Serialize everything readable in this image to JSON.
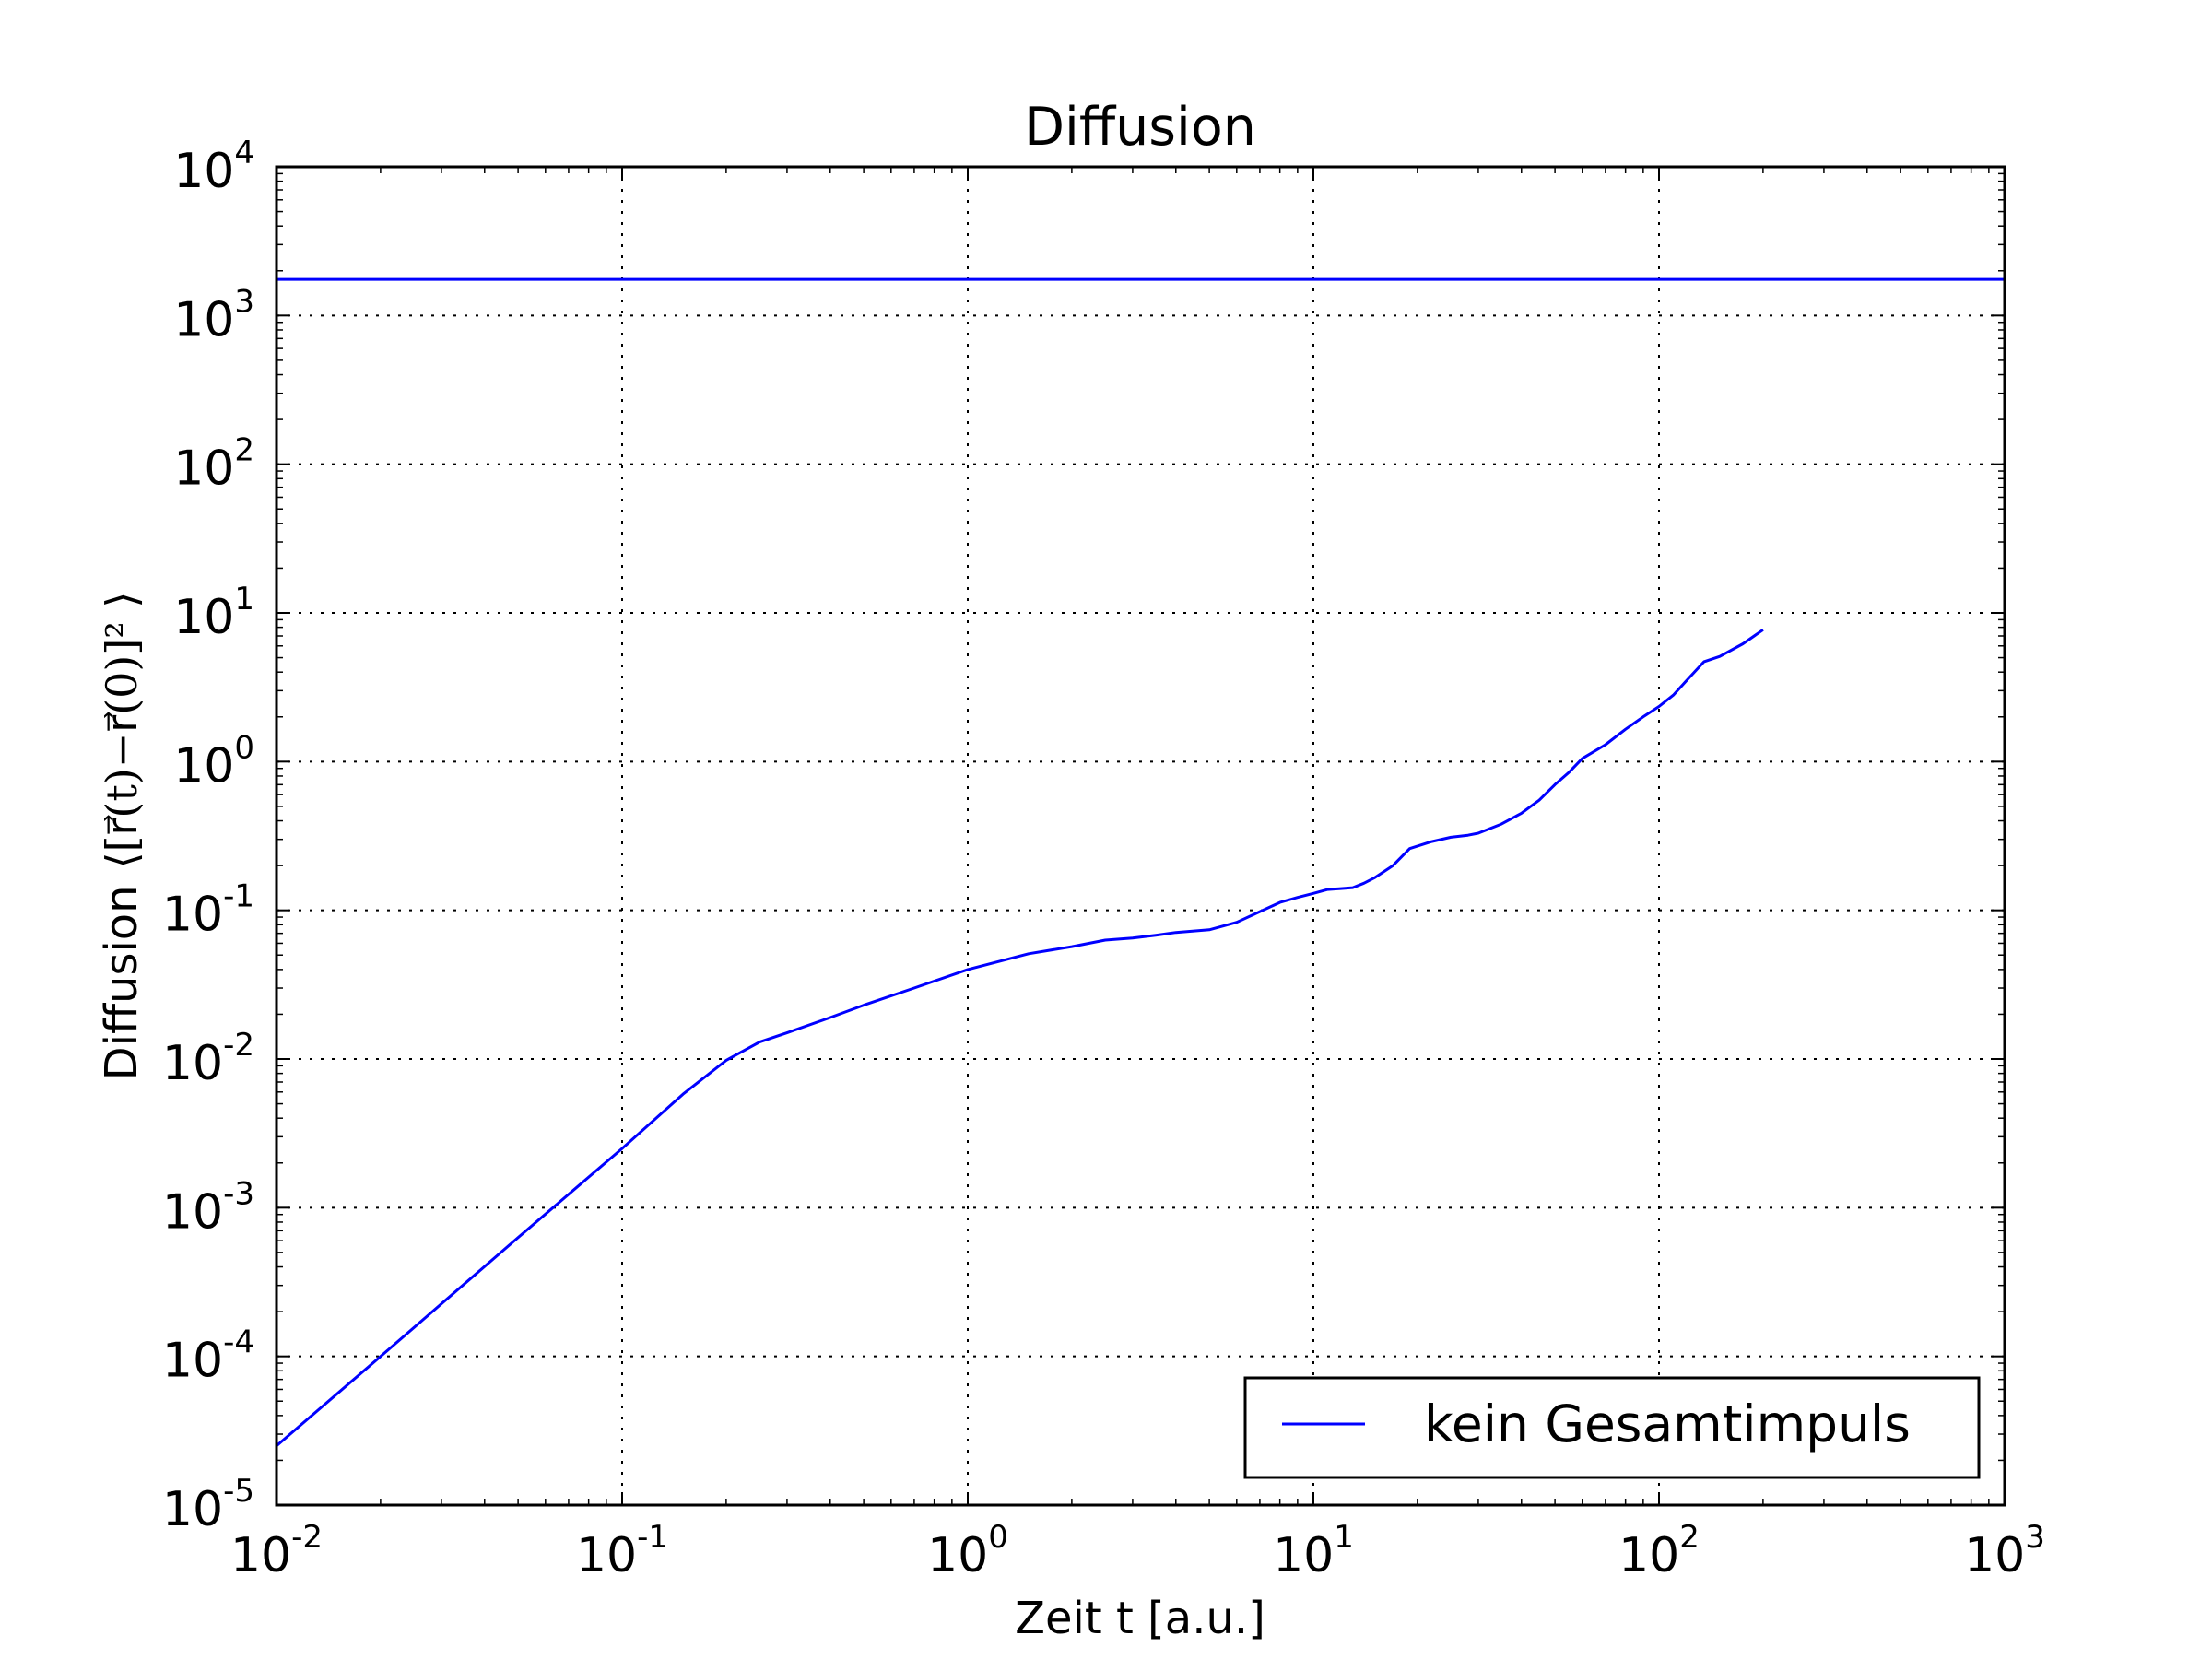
{
  "chart_data": {
    "type": "line",
    "title": "Diffusion",
    "xlabel": "Zeit t [a.u.]",
    "ylabel": {
      "text": "Diffusion",
      "math": "⟨[r⃗(t)−r⃗(0)]² ⟩"
    },
    "x_scale": "log",
    "y_scale": "log",
    "xlim": [
      0.01,
      1000
    ],
    "ylim": [
      1e-05,
      10000
    ],
    "x_ticks": [
      {
        "value": 0.01,
        "base": "10",
        "exp": "-2"
      },
      {
        "value": 0.1,
        "base": "10",
        "exp": "-1"
      },
      {
        "value": 1,
        "base": "10",
        "exp": "0"
      },
      {
        "value": 10,
        "base": "10",
        "exp": "1"
      },
      {
        "value": 100,
        "base": "10",
        "exp": "2"
      },
      {
        "value": 1000,
        "base": "10",
        "exp": "3"
      }
    ],
    "y_ticks": [
      {
        "value": 1e-05,
        "base": "10",
        "exp": "-5"
      },
      {
        "value": 0.0001,
        "base": "10",
        "exp": "-4"
      },
      {
        "value": 0.001,
        "base": "10",
        "exp": "-3"
      },
      {
        "value": 0.01,
        "base": "10",
        "exp": "-2"
      },
      {
        "value": 0.1,
        "base": "10",
        "exp": "-1"
      },
      {
        "value": 1,
        "base": "10",
        "exp": "0"
      },
      {
        "value": 10,
        "base": "10",
        "exp": "1"
      },
      {
        "value": 100,
        "base": "10",
        "exp": "2"
      },
      {
        "value": 1000,
        "base": "10",
        "exp": "3"
      },
      {
        "value": 10000,
        "base": "10",
        "exp": "4"
      }
    ],
    "grid": true,
    "legend_position": "lower right",
    "series": [
      {
        "name": "kein Gesamtimpuls",
        "color": "#0000ff",
        "x": [
          0.01,
          0.02,
          0.05,
          0.1,
          0.15,
          0.2,
          0.25,
          0.3,
          0.4,
          0.5,
          0.7,
          1.0,
          1.5,
          2.0,
          2.5,
          3.0,
          3.5,
          4.0,
          5.0,
          6.0,
          7.0,
          8.0,
          9.0,
          10.0,
          11.0,
          12.0,
          13.0,
          14.0,
          15.0,
          17.0,
          19.0,
          22.0,
          25.0,
          28.0,
          30.0,
          35.0,
          40.0,
          45.0,
          50.0,
          55.0,
          60.0,
          70.0,
          80.0,
          90.0,
          100.0,
          110.0,
          120.0,
          135.0,
          150.0,
          175.0,
          200.0
        ],
        "y": [
          2.5e-05,
          0.0001,
          0.00063,
          0.0025,
          0.0058,
          0.0098,
          0.013,
          0.015,
          0.019,
          0.023,
          0.03,
          0.04,
          0.051,
          0.057,
          0.063,
          0.065,
          0.068,
          0.071,
          0.074,
          0.083,
          0.098,
          0.113,
          0.122,
          0.13,
          0.138,
          0.14,
          0.142,
          0.152,
          0.165,
          0.2,
          0.26,
          0.29,
          0.31,
          0.32,
          0.33,
          0.38,
          0.45,
          0.55,
          0.7,
          0.85,
          1.05,
          1.3,
          1.65,
          2.0,
          2.35,
          2.8,
          3.5,
          4.7,
          5.1,
          6.2,
          7.7
        ]
      },
      {
        "name": "",
        "color": "#0000ff",
        "x": [
          0.01,
          1000
        ],
        "y": [
          1750,
          1750
        ]
      }
    ]
  }
}
